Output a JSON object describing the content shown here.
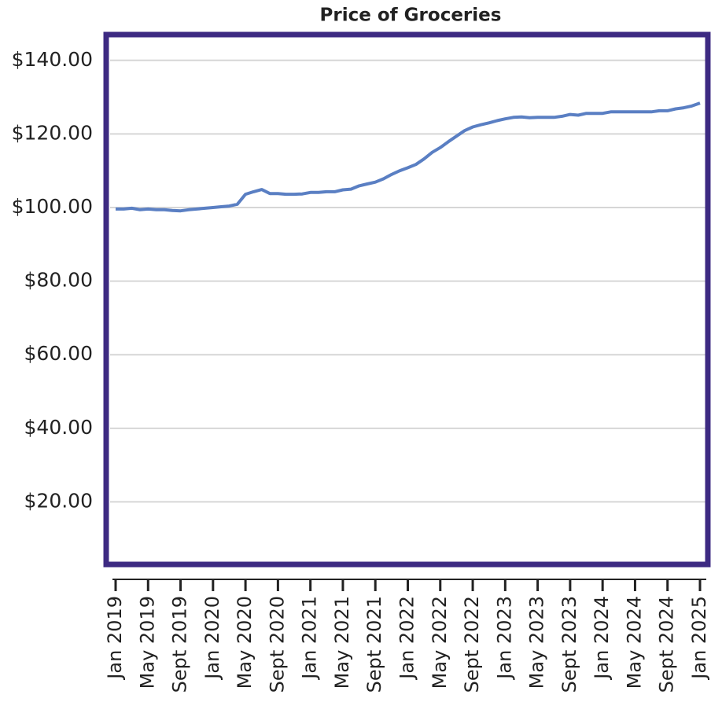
{
  "chart_data": {
    "type": "line",
    "title": "Price of Groceries",
    "categories": [
      "Jan 2019",
      null,
      null,
      null,
      "May 2019",
      null,
      null,
      null,
      "Sept 2019",
      null,
      null,
      null,
      "Jan 2020",
      null,
      null,
      null,
      "May 2020",
      null,
      null,
      null,
      "Sept 2020",
      null,
      null,
      null,
      "Jan 2021",
      null,
      null,
      null,
      "May 2021",
      null,
      null,
      null,
      "Sept 2021",
      null,
      null,
      null,
      "Jan 2022",
      null,
      null,
      null,
      "May 2022",
      null,
      null,
      null,
      "Sept 2022",
      null,
      null,
      null,
      "Jan 2023",
      null,
      null,
      null,
      "May 2023",
      null,
      null,
      null,
      "Sept 2023",
      null,
      null,
      null,
      "Jan 2024",
      null,
      null,
      null,
      "May 2024",
      null,
      null,
      null,
      "Sept 2024",
      null,
      null,
      null,
      "Jan 2025"
    ],
    "values": [
      99.6,
      99.6,
      99.8,
      99.4,
      99.6,
      99.4,
      99.4,
      99.2,
      99.1,
      99.4,
      99.6,
      99.8,
      100.0,
      100.2,
      100.4,
      100.9,
      103.6,
      104.3,
      104.9,
      103.8,
      103.8,
      103.6,
      103.6,
      103.7,
      104.1,
      104.1,
      104.3,
      104.3,
      104.8,
      105.0,
      105.9,
      106.4,
      106.9,
      107.8,
      109.0,
      110.0,
      110.8,
      111.7,
      113.2,
      115.0,
      116.3,
      117.9,
      119.4,
      120.9,
      121.9,
      122.5,
      123.0,
      123.6,
      124.1,
      124.5,
      124.6,
      124.4,
      124.5,
      124.5,
      124.5,
      124.8,
      125.3,
      125.1,
      125.6,
      125.6,
      125.6,
      126.0,
      126.0,
      126.0,
      126.0,
      126.0,
      126.0,
      126.3,
      126.3,
      126.8,
      127.1,
      127.6,
      128.4
    ],
    "color": "#5a7fc3",
    "frame_color": "#3d2a82",
    "ylim": [
      3,
      147
    ],
    "yticks": [
      {
        "value": 20,
        "label": "$20.00"
      },
      {
        "value": 40,
        "label": "$40.00"
      },
      {
        "value": 60,
        "label": "$60.00"
      },
      {
        "value": 80,
        "label": "$80.00"
      },
      {
        "value": 100,
        "label": "$100.00"
      },
      {
        "value": 120,
        "label": "$120.00"
      },
      {
        "value": 140,
        "label": "$140.00"
      }
    ],
    "grid": true
  }
}
